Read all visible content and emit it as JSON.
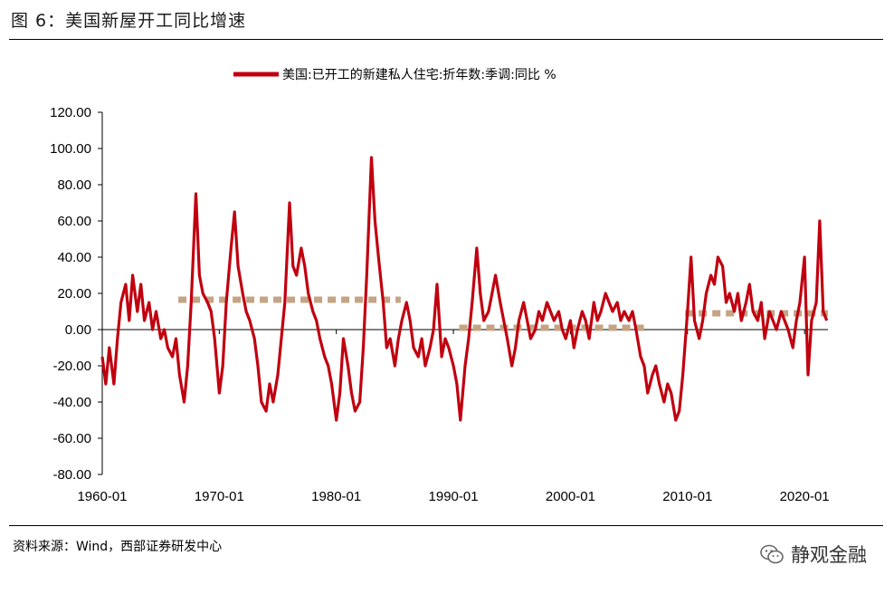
{
  "figure_title": "图 6：美国新屋开工同比增速",
  "source": "资料来源：Wind，西部证券研发中心",
  "watermark": "静观金融",
  "colors": {
    "series": "#c0000f",
    "average": "#c4a484"
  },
  "chart_data": {
    "type": "line",
    "title": "",
    "xlabel": "",
    "ylabel": "",
    "ylim": [
      -80,
      120
    ],
    "xlim": [
      1960.0,
      2022.0
    ],
    "yticks": [
      "120.00",
      "100.00",
      "80.00",
      "60.00",
      "40.00",
      "20.00",
      "0.00",
      "-20.00",
      "-40.00",
      "-60.00",
      "-80.00"
    ],
    "ytick_values": [
      120,
      100,
      80,
      60,
      40,
      20,
      0,
      -20,
      -40,
      -60,
      -80
    ],
    "xticks": [
      "1960-01",
      "1970-01",
      "1980-01",
      "1990-01",
      "2000-01",
      "2010-01",
      "2020-01"
    ],
    "xtick_values": [
      1960,
      1970,
      1980,
      1990,
      2000,
      2010,
      2020
    ],
    "legend": "美国:已开工的新建私人住宅:折年数:季调:同比 %",
    "legend_position": "top-center",
    "grid": false,
    "series": [
      {
        "name": "美国:已开工的新建私人住宅:折年数:季调:同比 %",
        "points": [
          [
            1960.0,
            -15
          ],
          [
            1960.3,
            -30
          ],
          [
            1960.6,
            -10
          ],
          [
            1961.0,
            -30
          ],
          [
            1961.3,
            -5
          ],
          [
            1961.6,
            15
          ],
          [
            1962.0,
            25
          ],
          [
            1962.3,
            5
          ],
          [
            1962.6,
            30
          ],
          [
            1963.0,
            10
          ],
          [
            1963.3,
            25
          ],
          [
            1963.6,
            5
          ],
          [
            1964.0,
            15
          ],
          [
            1964.3,
            0
          ],
          [
            1964.6,
            10
          ],
          [
            1965.0,
            -5
          ],
          [
            1965.3,
            0
          ],
          [
            1965.6,
            -10
          ],
          [
            1966.0,
            -15
          ],
          [
            1966.3,
            -5
          ],
          [
            1966.6,
            -25
          ],
          [
            1967.0,
            -40
          ],
          [
            1967.3,
            -20
          ],
          [
            1967.6,
            15
          ],
          [
            1968.0,
            75
          ],
          [
            1968.3,
            30
          ],
          [
            1968.6,
            20
          ],
          [
            1969.0,
            15
          ],
          [
            1969.3,
            10
          ],
          [
            1969.6,
            -5
          ],
          [
            1970.0,
            -35
          ],
          [
            1970.3,
            -20
          ],
          [
            1970.6,
            15
          ],
          [
            1971.0,
            45
          ],
          [
            1971.3,
            65
          ],
          [
            1971.6,
            35
          ],
          [
            1972.0,
            20
          ],
          [
            1972.3,
            10
          ],
          [
            1972.6,
            5
          ],
          [
            1973.0,
            -5
          ],
          [
            1973.3,
            -20
          ],
          [
            1973.6,
            -40
          ],
          [
            1974.0,
            -45
          ],
          [
            1974.3,
            -30
          ],
          [
            1974.6,
            -40
          ],
          [
            1975.0,
            -25
          ],
          [
            1975.3,
            -5
          ],
          [
            1975.6,
            15
          ],
          [
            1976.0,
            70
          ],
          [
            1976.3,
            35
          ],
          [
            1976.6,
            30
          ],
          [
            1977.0,
            45
          ],
          [
            1977.3,
            35
          ],
          [
            1977.6,
            20
          ],
          [
            1978.0,
            10
          ],
          [
            1978.3,
            5
          ],
          [
            1978.6,
            -5
          ],
          [
            1979.0,
            -15
          ],
          [
            1979.3,
            -20
          ],
          [
            1979.6,
            -30
          ],
          [
            1980.0,
            -50
          ],
          [
            1980.3,
            -35
          ],
          [
            1980.6,
            -5
          ],
          [
            1981.0,
            -20
          ],
          [
            1981.3,
            -35
          ],
          [
            1981.6,
            -45
          ],
          [
            1982.0,
            -40
          ],
          [
            1982.3,
            -10
          ],
          [
            1982.6,
            30
          ],
          [
            1983.0,
            95
          ],
          [
            1983.3,
            60
          ],
          [
            1983.6,
            40
          ],
          [
            1984.0,
            15
          ],
          [
            1984.3,
            -10
          ],
          [
            1984.6,
            -5
          ],
          [
            1985.0,
            -20
          ],
          [
            1985.3,
            -5
          ],
          [
            1985.6,
            5
          ],
          [
            1986.0,
            15
          ],
          [
            1986.3,
            5
          ],
          [
            1986.6,
            -10
          ],
          [
            1987.0,
            -15
          ],
          [
            1987.3,
            -5
          ],
          [
            1987.6,
            -20
          ],
          [
            1988.0,
            -10
          ],
          [
            1988.3,
            0
          ],
          [
            1988.6,
            25
          ],
          [
            1989.0,
            -15
          ],
          [
            1989.3,
            -5
          ],
          [
            1989.6,
            -10
          ],
          [
            1990.0,
            -20
          ],
          [
            1990.3,
            -30
          ],
          [
            1990.6,
            -50
          ],
          [
            1991.0,
            -20
          ],
          [
            1991.3,
            -5
          ],
          [
            1991.6,
            15
          ],
          [
            1992.0,
            45
          ],
          [
            1992.3,
            20
          ],
          [
            1992.6,
            5
          ],
          [
            1993.0,
            10
          ],
          [
            1993.3,
            20
          ],
          [
            1993.6,
            30
          ],
          [
            1994.0,
            15
          ],
          [
            1994.3,
            5
          ],
          [
            1994.6,
            -5
          ],
          [
            1995.0,
            -20
          ],
          [
            1995.3,
            -10
          ],
          [
            1995.6,
            5
          ],
          [
            1996.0,
            15
          ],
          [
            1996.3,
            5
          ],
          [
            1996.6,
            -5
          ],
          [
            1997.0,
            0
          ],
          [
            1997.3,
            10
          ],
          [
            1997.6,
            5
          ],
          [
            1998.0,
            15
          ],
          [
            1998.3,
            10
          ],
          [
            1998.6,
            5
          ],
          [
            1999.0,
            10
          ],
          [
            1999.3,
            0
          ],
          [
            1999.6,
            -5
          ],
          [
            2000.0,
            5
          ],
          [
            2000.3,
            -10
          ],
          [
            2000.6,
            0
          ],
          [
            2001.0,
            10
          ],
          [
            2001.3,
            5
          ],
          [
            2001.6,
            -5
          ],
          [
            2002.0,
            15
          ],
          [
            2002.3,
            5
          ],
          [
            2002.6,
            10
          ],
          [
            2003.0,
            20
          ],
          [
            2003.3,
            15
          ],
          [
            2003.6,
            10
          ],
          [
            2004.0,
            15
          ],
          [
            2004.3,
            5
          ],
          [
            2004.6,
            10
          ],
          [
            2005.0,
            5
          ],
          [
            2005.3,
            10
          ],
          [
            2005.6,
            0
          ],
          [
            2006.0,
            -15
          ],
          [
            2006.3,
            -20
          ],
          [
            2006.6,
            -35
          ],
          [
            2007.0,
            -25
          ],
          [
            2007.3,
            -20
          ],
          [
            2007.6,
            -30
          ],
          [
            2008.0,
            -40
          ],
          [
            2008.3,
            -30
          ],
          [
            2008.6,
            -35
          ],
          [
            2009.0,
            -50
          ],
          [
            2009.3,
            -45
          ],
          [
            2009.6,
            -25
          ],
          [
            2010.0,
            10
          ],
          [
            2010.3,
            40
          ],
          [
            2010.6,
            5
          ],
          [
            2011.0,
            -5
          ],
          [
            2011.3,
            5
          ],
          [
            2011.6,
            20
          ],
          [
            2012.0,
            30
          ],
          [
            2012.3,
            25
          ],
          [
            2012.6,
            40
          ],
          [
            2013.0,
            35
          ],
          [
            2013.3,
            15
          ],
          [
            2013.6,
            20
          ],
          [
            2014.0,
            10
          ],
          [
            2014.3,
            20
          ],
          [
            2014.6,
            5
          ],
          [
            2015.0,
            15
          ],
          [
            2015.3,
            25
          ],
          [
            2015.6,
            10
          ],
          [
            2016.0,
            5
          ],
          [
            2016.3,
            15
          ],
          [
            2016.6,
            -5
          ],
          [
            2017.0,
            10
          ],
          [
            2017.3,
            5
          ],
          [
            2017.6,
            0
          ],
          [
            2018.0,
            10
          ],
          [
            2018.3,
            5
          ],
          [
            2018.6,
            0
          ],
          [
            2019.0,
            -10
          ],
          [
            2019.3,
            5
          ],
          [
            2019.6,
            15
          ],
          [
            2020.0,
            40
          ],
          [
            2020.3,
            -25
          ],
          [
            2020.6,
            5
          ],
          [
            2021.0,
            15
          ],
          [
            2021.3,
            60
          ],
          [
            2021.6,
            10
          ],
          [
            2021.9,
            5
          ]
        ]
      }
    ],
    "average_segments": [
      {
        "x": [
          1966.5,
          1985.5
        ],
        "y": 16.5
      },
      {
        "x": [
          1990.5,
          2006.5
        ],
        "y": 1.0
      },
      {
        "x": [
          2009.8,
          2022.0
        ],
        "y": 9.0
      }
    ]
  }
}
